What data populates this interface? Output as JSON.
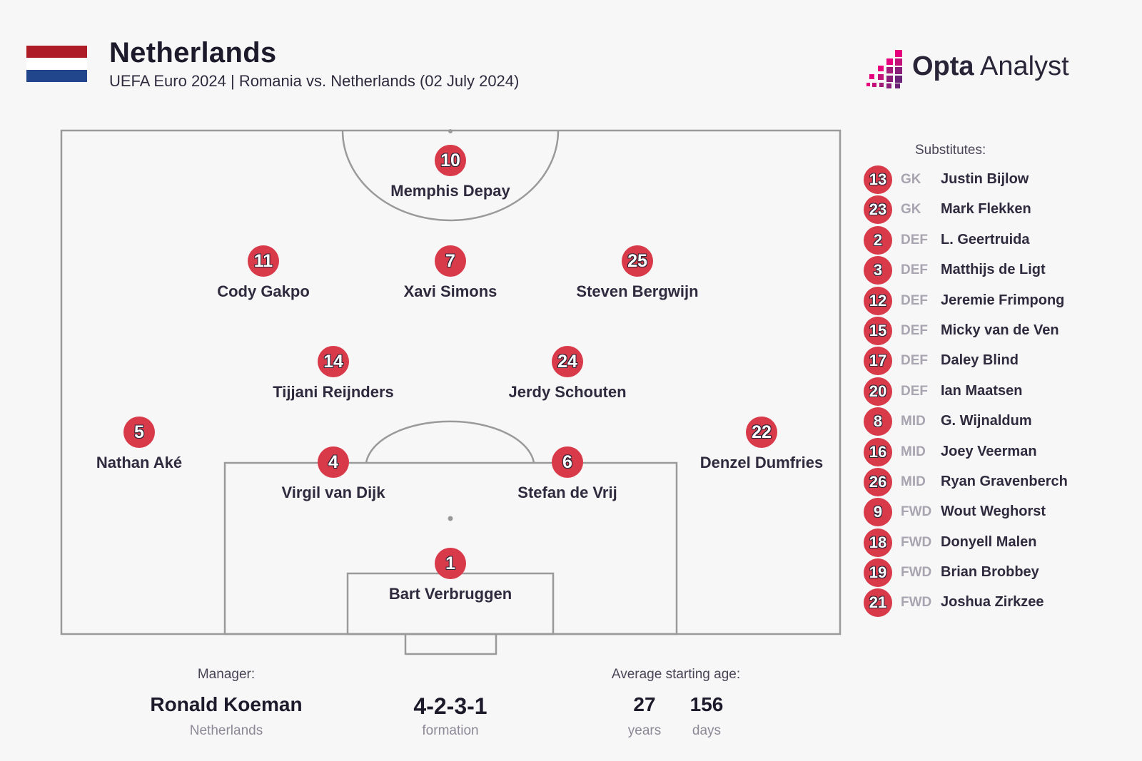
{
  "header": {
    "title": "Netherlands",
    "subtitle": "UEFA Euro 2024 | Romania vs. Netherlands (02 July 2024)",
    "flag_colors": [
      "#ae1c28",
      "#ffffff",
      "#21468b"
    ]
  },
  "logo": {
    "brand_bold": "Opta",
    "brand_light": "Analyst",
    "accent_colors": [
      "#e6007e",
      "#8a1f7a"
    ]
  },
  "colors": {
    "badge": "#d93a4a",
    "pitch_lines": "#9a9a9a",
    "background": "#f7f7f7"
  },
  "lineup": {
    "formation": "4-2-3-1",
    "players": [
      {
        "number": "10",
        "name": "Memphis Depay"
      },
      {
        "number": "11",
        "name": "Cody Gakpo"
      },
      {
        "number": "7",
        "name": "Xavi Simons"
      },
      {
        "number": "25",
        "name": "Steven Bergwijn"
      },
      {
        "number": "14",
        "name": "Tijjani Reijnders"
      },
      {
        "number": "24",
        "name": "Jerdy Schouten"
      },
      {
        "number": "5",
        "name": "Nathan Aké"
      },
      {
        "number": "4",
        "name": "Virgil van Dijk"
      },
      {
        "number": "6",
        "name": "Stefan de Vrij"
      },
      {
        "number": "22",
        "name": "Denzel Dumfries"
      },
      {
        "number": "1",
        "name": "Bart Verbruggen"
      }
    ]
  },
  "substitutes": {
    "title": "Substitutes:",
    "list": [
      {
        "number": "13",
        "pos": "GK",
        "name": "Justin Bijlow"
      },
      {
        "number": "23",
        "pos": "GK",
        "name": "Mark Flekken"
      },
      {
        "number": "2",
        "pos": "DEF",
        "name": "L. Geertruida"
      },
      {
        "number": "3",
        "pos": "DEF",
        "name": "Matthijs de Ligt"
      },
      {
        "number": "12",
        "pos": "DEF",
        "name": "Jeremie Frimpong"
      },
      {
        "number": "15",
        "pos": "DEF",
        "name": "Micky van de Ven"
      },
      {
        "number": "17",
        "pos": "DEF",
        "name": "Daley Blind"
      },
      {
        "number": "20",
        "pos": "DEF",
        "name": "Ian Maatsen"
      },
      {
        "number": "8",
        "pos": "MID",
        "name": "G. Wijnaldum"
      },
      {
        "number": "16",
        "pos": "MID",
        "name": "Joey Veerman"
      },
      {
        "number": "26",
        "pos": "MID",
        "name": "Ryan Gravenberch"
      },
      {
        "number": "9",
        "pos": "FWD",
        "name": "Wout Weghorst"
      },
      {
        "number": "18",
        "pos": "FWD",
        "name": "Donyell Malen"
      },
      {
        "number": "19",
        "pos": "FWD",
        "name": "Brian Brobbey"
      },
      {
        "number": "21",
        "pos": "FWD",
        "name": "Joshua Zirkzee"
      }
    ]
  },
  "footer": {
    "manager_label": "Manager:",
    "manager_name": "Ronald Koeman",
    "manager_country": "Netherlands",
    "formation_value": "4-2-3-1",
    "formation_label": "formation",
    "age_label": "Average starting age:",
    "age_years": "27",
    "age_years_label": "years",
    "age_days": "156",
    "age_days_label": "days"
  }
}
